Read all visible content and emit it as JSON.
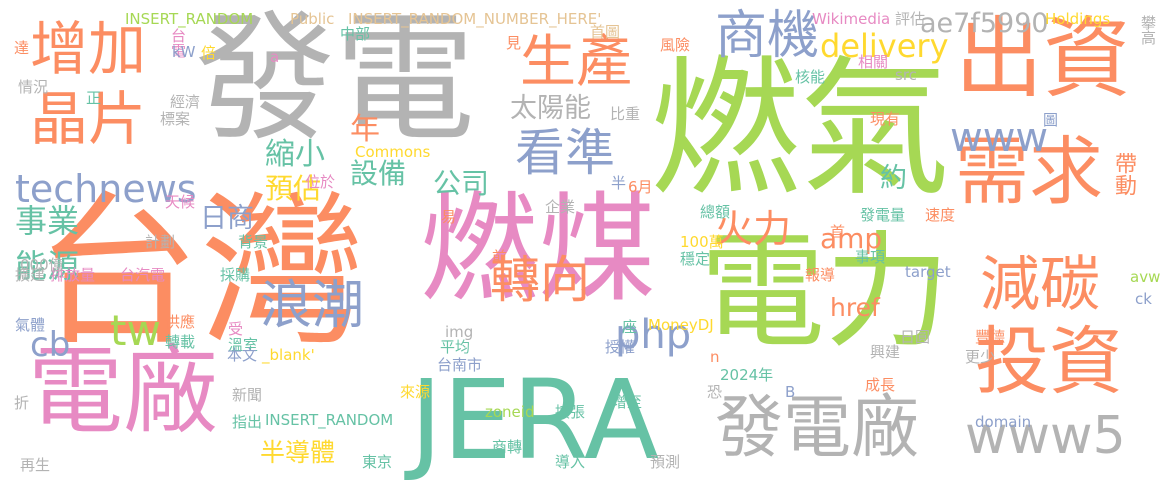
{
  "palette": {
    "orange": "#FC8D62",
    "green": "#A6D854",
    "pink": "#E78AC3",
    "gray": "#B3B3B3",
    "blue": "#8DA0CB",
    "teal": "#66C2A5",
    "yellow": "#FFD92F",
    "tan": "#E5C494"
  },
  "words": [
    {
      "text": "台灣",
      "color": "orange"
    },
    {
      "text": "發電",
      "color": "gray"
    },
    {
      "text": "燃氣",
      "color": "green"
    },
    {
      "text": "燃煤",
      "color": "pink"
    },
    {
      "text": "電力",
      "color": "green"
    },
    {
      "text": "JERA",
      "color": "teal"
    },
    {
      "text": "電廠",
      "color": "pink"
    },
    {
      "text": "出資",
      "color": "orange"
    },
    {
      "text": "需求",
      "color": "orange"
    },
    {
      "text": "投資",
      "color": "orange"
    },
    {
      "text": "發電廠",
      "color": "gray"
    },
    {
      "text": "減碳",
      "color": "orange"
    },
    {
      "text": "增加",
      "color": "orange"
    },
    {
      "text": "晶片",
      "color": "orange"
    },
    {
      "text": "生產",
      "color": "orange"
    },
    {
      "text": "商機",
      "color": "blue"
    },
    {
      "text": "delivery",
      "color": "yellow"
    },
    {
      "text": "ae7f5990",
      "color": "gray"
    },
    {
      "text": "看準",
      "color": "blue"
    },
    {
      "text": "www",
      "color": "blue"
    },
    {
      "text": "technews",
      "color": "blue"
    },
    {
      "text": "太陽能",
      "color": "gray"
    },
    {
      "text": "縮小",
      "color": "teal"
    },
    {
      "text": "設備",
      "color": "teal"
    },
    {
      "text": "公司",
      "color": "teal"
    },
    {
      "text": "預估",
      "color": "yellow"
    },
    {
      "text": "年",
      "color": "orange"
    },
    {
      "text": "事業",
      "color": "teal"
    },
    {
      "text": "火力",
      "color": "orange"
    },
    {
      "text": "amp",
      "color": "orange"
    },
    {
      "text": "能源",
      "color": "teal"
    },
    {
      "text": "tw",
      "color": "green"
    },
    {
      "text": "cb",
      "color": "blue"
    },
    {
      "text": "浪潮",
      "color": "blue"
    },
    {
      "text": "轉向",
      "color": "orange"
    },
    {
      "text": "php",
      "color": "blue"
    },
    {
      "text": "www5",
      "color": "gray"
    },
    {
      "text": "半導體",
      "color": "yellow"
    },
    {
      "text": "href",
      "color": "orange"
    },
    {
      "text": "約",
      "color": "teal"
    },
    {
      "text": "帶動",
      "color": "orange"
    },
    {
      "text": "INSERT_RANDOM",
      "color": "green"
    },
    {
      "text": "Public",
      "color": "tan"
    },
    {
      "text": "INSERT_RANDOM_NUMBER_HERE'",
      "color": "tan"
    },
    {
      "text": "Wikimedia",
      "color": "pink"
    },
    {
      "text": "評估",
      "color": "gray"
    },
    {
      "text": "Holdings",
      "color": "yellow"
    },
    {
      "text": "攀高",
      "color": "gray"
    },
    {
      "text": "台電",
      "color": "pink"
    },
    {
      "text": "kW",
      "color": "blue"
    },
    {
      "text": "中部",
      "color": "teal"
    },
    {
      "text": "見",
      "color": "orange"
    },
    {
      "text": "首圖",
      "color": "tan"
    },
    {
      "text": "風險",
      "color": "orange"
    },
    {
      "text": "相關",
      "color": "pink"
    },
    {
      "text": "核能",
      "color": "teal"
    },
    {
      "text": "src",
      "color": "gray"
    },
    {
      "text": "達",
      "color": "orange"
    },
    {
      "text": "倍",
      "color": "yellow"
    },
    {
      "text": "a",
      "color": "pink"
    },
    {
      "text": "情況",
      "color": "gray"
    },
    {
      "text": "正",
      "color": "teal"
    },
    {
      "text": "經濟",
      "color": "gray"
    },
    {
      "text": "標案",
      "color": "gray"
    },
    {
      "text": "比重",
      "color": "gray"
    },
    {
      "text": "現有",
      "color": "orange"
    },
    {
      "text": "圖",
      "color": "blue"
    },
    {
      "text": "Commons",
      "color": "yellow"
    },
    {
      "text": "位於",
      "color": "pink"
    },
    {
      "text": "半",
      "color": "blue"
    },
    {
      "text": "6月",
      "color": "orange"
    },
    {
      "text": "天候",
      "color": "pink"
    },
    {
      "text": "日商",
      "color": "blue"
    },
    {
      "text": "企業",
      "color": "gray"
    },
    {
      "text": "易",
      "color": "orange"
    },
    {
      "text": "總額",
      "color": "teal"
    },
    {
      "text": "發電量",
      "color": "teal"
    },
    {
      "text": "速度",
      "color": "orange"
    },
    {
      "text": "首",
      "color": "orange"
    },
    {
      "text": "計劃",
      "color": "gray"
    },
    {
      "text": "背景",
      "color": "teal"
    },
    {
      "text": "100萬",
      "color": "yellow"
    },
    {
      "text": "穩定",
      "color": "teal"
    },
    {
      "text": "前",
      "color": "orange"
    },
    {
      "text": "事項",
      "color": "teal"
    },
    {
      "text": "擴建",
      "color": "gray"
    },
    {
      "text": "排放量",
      "color": "pink"
    },
    {
      "text": "000億",
      "color": "gray"
    },
    {
      "text": "avw",
      "color": "green"
    },
    {
      "text": "台汽電",
      "color": "pink"
    },
    {
      "text": "採購",
      "color": "teal"
    },
    {
      "text": "報導",
      "color": "orange"
    },
    {
      "text": "target",
      "color": "blue"
    },
    {
      "text": "ck",
      "color": "blue"
    },
    {
      "text": "氣體",
      "color": "blue"
    },
    {
      "text": "供應",
      "color": "orange"
    },
    {
      "text": "受",
      "color": "pink"
    },
    {
      "text": "溫室",
      "color": "teal"
    },
    {
      "text": "轉載",
      "color": "teal"
    },
    {
      "text": "img",
      "color": "gray"
    },
    {
      "text": "MoneyDJ",
      "color": "yellow"
    },
    {
      "text": "座",
      "color": "teal"
    },
    {
      "text": "日圓",
      "color": "gray"
    },
    {
      "text": "豐德",
      "color": "orange"
    },
    {
      "text": "更少",
      "color": "gray"
    },
    {
      "text": "本文",
      "color": "blue"
    },
    {
      "text": "_blank'",
      "color": "yellow"
    },
    {
      "text": "平均",
      "color": "teal"
    },
    {
      "text": "授權",
      "color": "blue"
    },
    {
      "text": "興建",
      "color": "gray"
    },
    {
      "text": "n",
      "color": "orange"
    },
    {
      "text": "台南市",
      "color": "blue"
    },
    {
      "text": "2024年",
      "color": "teal"
    },
    {
      "text": "成長",
      "color": "orange"
    },
    {
      "text": "折",
      "color": "gray"
    },
    {
      "text": "新聞",
      "color": "gray"
    },
    {
      "text": "來源",
      "color": "yellow"
    },
    {
      "text": "恐",
      "color": "gray"
    },
    {
      "text": "增至",
      "color": "teal"
    },
    {
      "text": "B",
      "color": "blue"
    },
    {
      "text": "指出",
      "color": "teal"
    },
    {
      "text": "zoneid",
      "color": "green"
    },
    {
      "text": "擴張",
      "color": "teal"
    },
    {
      "text": "domain",
      "color": "blue"
    },
    {
      "text": "INSERT_RANDOM",
      "color": "teal"
    },
    {
      "text": "東京",
      "color": "teal"
    },
    {
      "text": "商轉",
      "color": "teal"
    },
    {
      "text": "導入",
      "color": "teal"
    },
    {
      "text": "預測",
      "color": "gray"
    },
    {
      "text": "再生",
      "color": "gray"
    }
  ]
}
